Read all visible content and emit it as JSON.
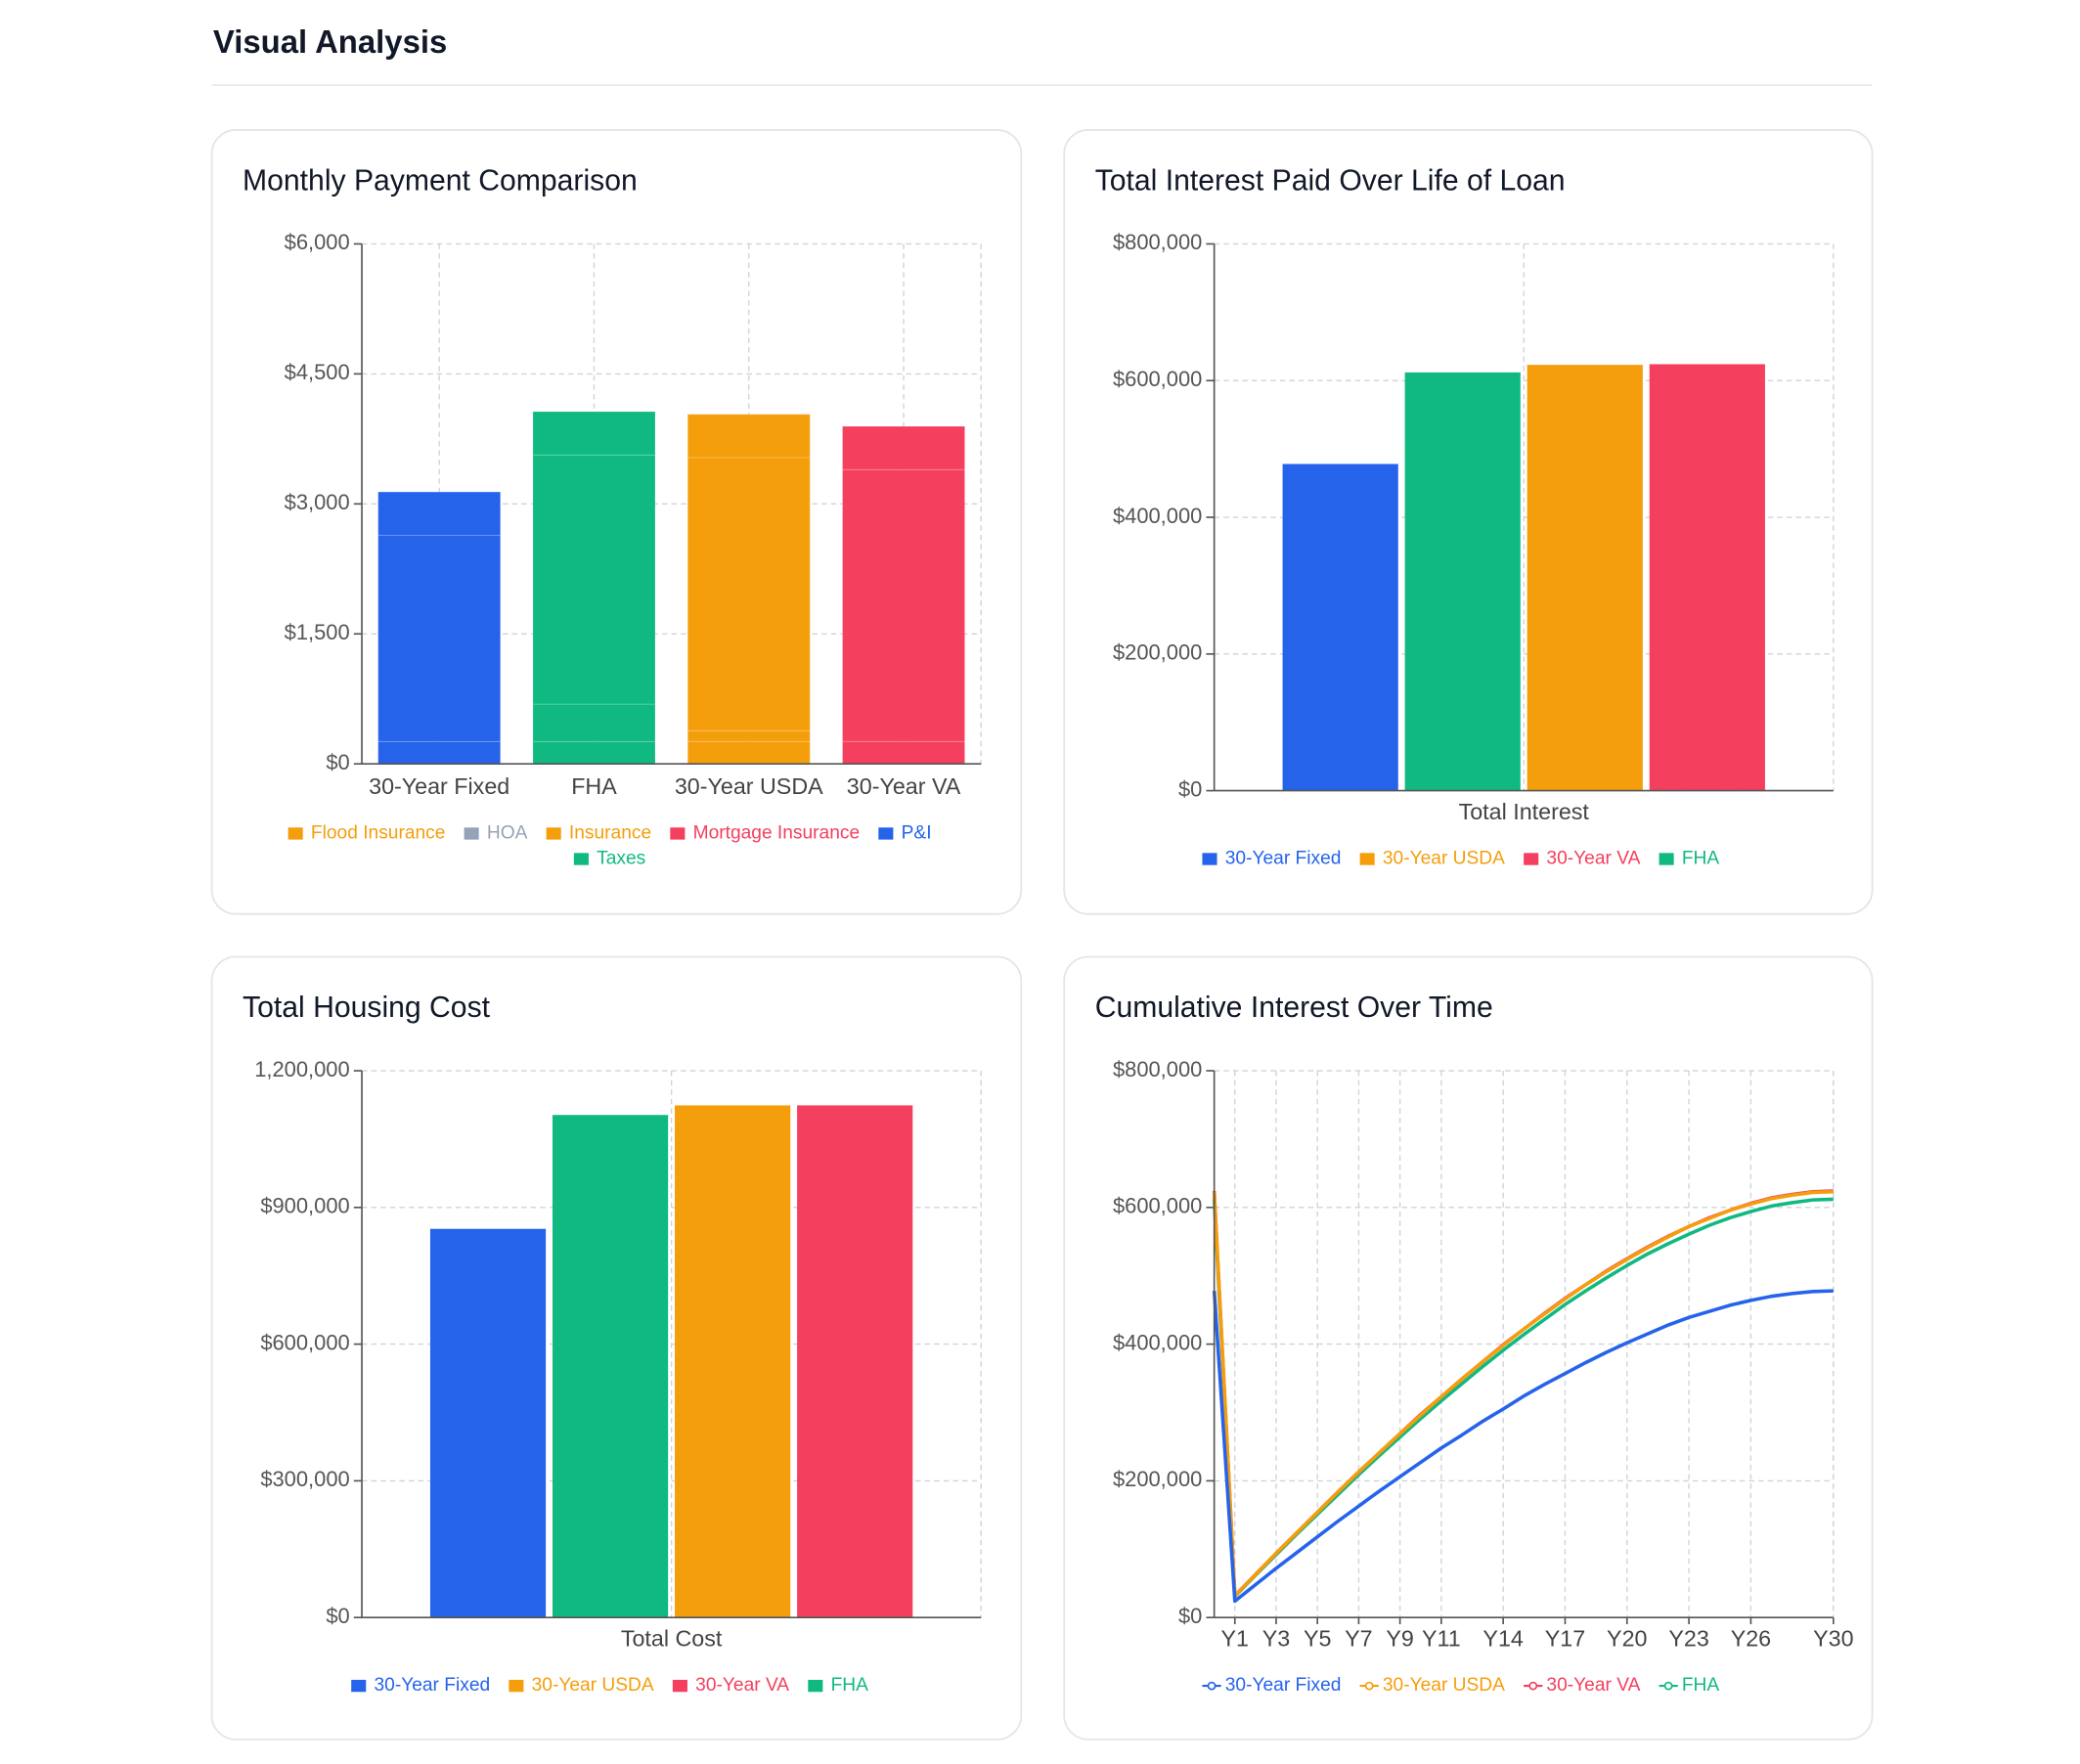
{
  "header": {
    "title": "Visual Analysis"
  },
  "chart_data": [
    {
      "type": "stacked_bar",
      "title": "Monthly Payment Comparison",
      "categories": [
        "30-Year Fixed",
        "FHA",
        "30-Year USDA",
        "30-Year VA"
      ],
      "category_colors": [
        "#2563eb",
        "#10b981",
        "#f59e0b",
        "#f43f5e"
      ],
      "series": [
        {
          "name": "Flood Insurance",
          "color": "#f59e0b",
          "values": [
            0,
            0,
            0,
            0
          ]
        },
        {
          "name": "HOA",
          "color": "#94a3b8",
          "values": [
            0,
            0,
            0,
            0
          ]
        },
        {
          "name": "Insurance",
          "color": "#f59e0b",
          "values": [
            258,
            258,
            258,
            258
          ]
        },
        {
          "name": "Mortgage Insurance",
          "color": "#f43f5e",
          "values": [
            0,
            432,
            126,
            0
          ]
        },
        {
          "name": "P&I",
          "color": "#2563eb",
          "values": [
            2380,
            2875,
            3150,
            3137
          ]
        },
        {
          "name": "Taxes",
          "color": "#10b981",
          "values": [
            500,
            500,
            500,
            500
          ]
        }
      ],
      "ylim": [
        0,
        6000
      ],
      "yticks": [
        {
          "value": 0,
          "label": "$0"
        },
        {
          "value": 1500,
          "label": "$1,500"
        },
        {
          "value": 3000,
          "label": "$3,000"
        },
        {
          "value": 4500,
          "label": "$4,500"
        },
        {
          "value": 6000,
          "label": "$6,000"
        }
      ],
      "grid": true
    },
    {
      "type": "bar",
      "title": "Total Interest Paid Over Life of Loan",
      "categories": [
        "Total Interest"
      ],
      "series": [
        {
          "name": "30-Year Fixed",
          "color": "#2563eb",
          "values": [
            478000
          ]
        },
        {
          "name": "FHA",
          "color": "#10b981",
          "values": [
            612000
          ]
        },
        {
          "name": "30-Year USDA",
          "color": "#f59e0b",
          "values": [
            623000
          ]
        },
        {
          "name": "30-Year VA",
          "color": "#f43f5e",
          "values": [
            624000
          ]
        }
      ],
      "ylim": [
        0,
        800000
      ],
      "yticks": [
        {
          "value": 0,
          "label": "$0"
        },
        {
          "value": 200000,
          "label": "$200,000"
        },
        {
          "value": 400000,
          "label": "$400,000"
        },
        {
          "value": 600000,
          "label": "$600,000"
        },
        {
          "value": 800000,
          "label": "$800,000"
        }
      ],
      "grid": true
    },
    {
      "type": "bar",
      "title": "Total Housing Cost",
      "categories": [
        "Total Cost"
      ],
      "series": [
        {
          "name": "30-Year Fixed",
          "color": "#2563eb",
          "values": [
            853000
          ]
        },
        {
          "name": "FHA",
          "color": "#10b981",
          "values": [
            1103000
          ]
        },
        {
          "name": "30-Year USDA",
          "color": "#f59e0b",
          "values": [
            1124000
          ]
        },
        {
          "name": "30-Year VA",
          "color": "#f43f5e",
          "values": [
            1124000
          ]
        }
      ],
      "ylim": [
        0,
        1200000
      ],
      "yticks": [
        {
          "value": 0,
          "label": "$0"
        },
        {
          "value": 300000,
          "label": "$300,000"
        },
        {
          "value": 600000,
          "label": "$600,000"
        },
        {
          "value": 900000,
          "label": "$900,000"
        },
        {
          "value": 1200000,
          "label": "1,200,000"
        }
      ],
      "grid": true
    },
    {
      "type": "line",
      "title": "Cumulative Interest Over Time",
      "categories": [
        null,
        "Y1",
        null,
        "Y3",
        null,
        "Y5",
        null,
        "Y7",
        null,
        "Y9",
        null,
        "Y11",
        null,
        null,
        "Y14",
        null,
        null,
        "Y17",
        null,
        null,
        "Y20",
        null,
        null,
        "Y23",
        null,
        null,
        "Y26",
        null,
        null,
        null,
        "Y30"
      ],
      "series": [
        {
          "name": "30-Year Fixed",
          "color": "#2563eb",
          "values": [
            478000,
            24000,
            48000,
            72000,
            95000,
            118000,
            141000,
            163000,
            185000,
            206000,
            227000,
            248000,
            267000,
            287000,
            305000,
            324000,
            341000,
            357000,
            373000,
            388000,
            402000,
            415000,
            428000,
            439000,
            448000,
            457000,
            464000,
            470000,
            474000,
            477000,
            478000
          ]
        },
        {
          "name": "30-Year USDA",
          "color": "#f59e0b",
          "values": [
            623000,
            32000,
            63000,
            94000,
            124000,
            154000,
            184000,
            213000,
            241000,
            269000,
            296000,
            323000,
            349000,
            374000,
            398000,
            422000,
            444000,
            466000,
            487000,
            506000,
            524000,
            541000,
            557000,
            572000,
            584000,
            596000,
            605000,
            613000,
            618000,
            622000,
            623000
          ]
        },
        {
          "name": "30-Year VA",
          "color": "#f43f5e",
          "values": [
            624000,
            32000,
            63000,
            94000,
            124000,
            154000,
            184000,
            213000,
            241000,
            269000,
            297000,
            323000,
            349000,
            374000,
            399000,
            422000,
            445000,
            467000,
            487000,
            507000,
            525000,
            542000,
            558000,
            572000,
            585000,
            596000,
            606000,
            614000,
            619000,
            623000,
            624000
          ]
        },
        {
          "name": "FHA",
          "color": "#10b981",
          "values": [
            612000,
            31000,
            62000,
            92000,
            122000,
            151000,
            180000,
            209000,
            237000,
            264000,
            291000,
            317000,
            342000,
            367000,
            391000,
            414000,
            436000,
            458000,
            478000,
            497000,
            515000,
            532000,
            547000,
            561000,
            574000,
            585000,
            594000,
            602000,
            607000,
            611000,
            612000
          ]
        }
      ],
      "ylim": [
        0,
        800000
      ],
      "yticks": [
        {
          "value": 0,
          "label": "$0"
        },
        {
          "value": 200000,
          "label": "$200,000"
        },
        {
          "value": 400000,
          "label": "$400,000"
        },
        {
          "value": 600000,
          "label": "$600,000"
        },
        {
          "value": 800000,
          "label": "$800,000"
        }
      ],
      "grid": true
    }
  ]
}
